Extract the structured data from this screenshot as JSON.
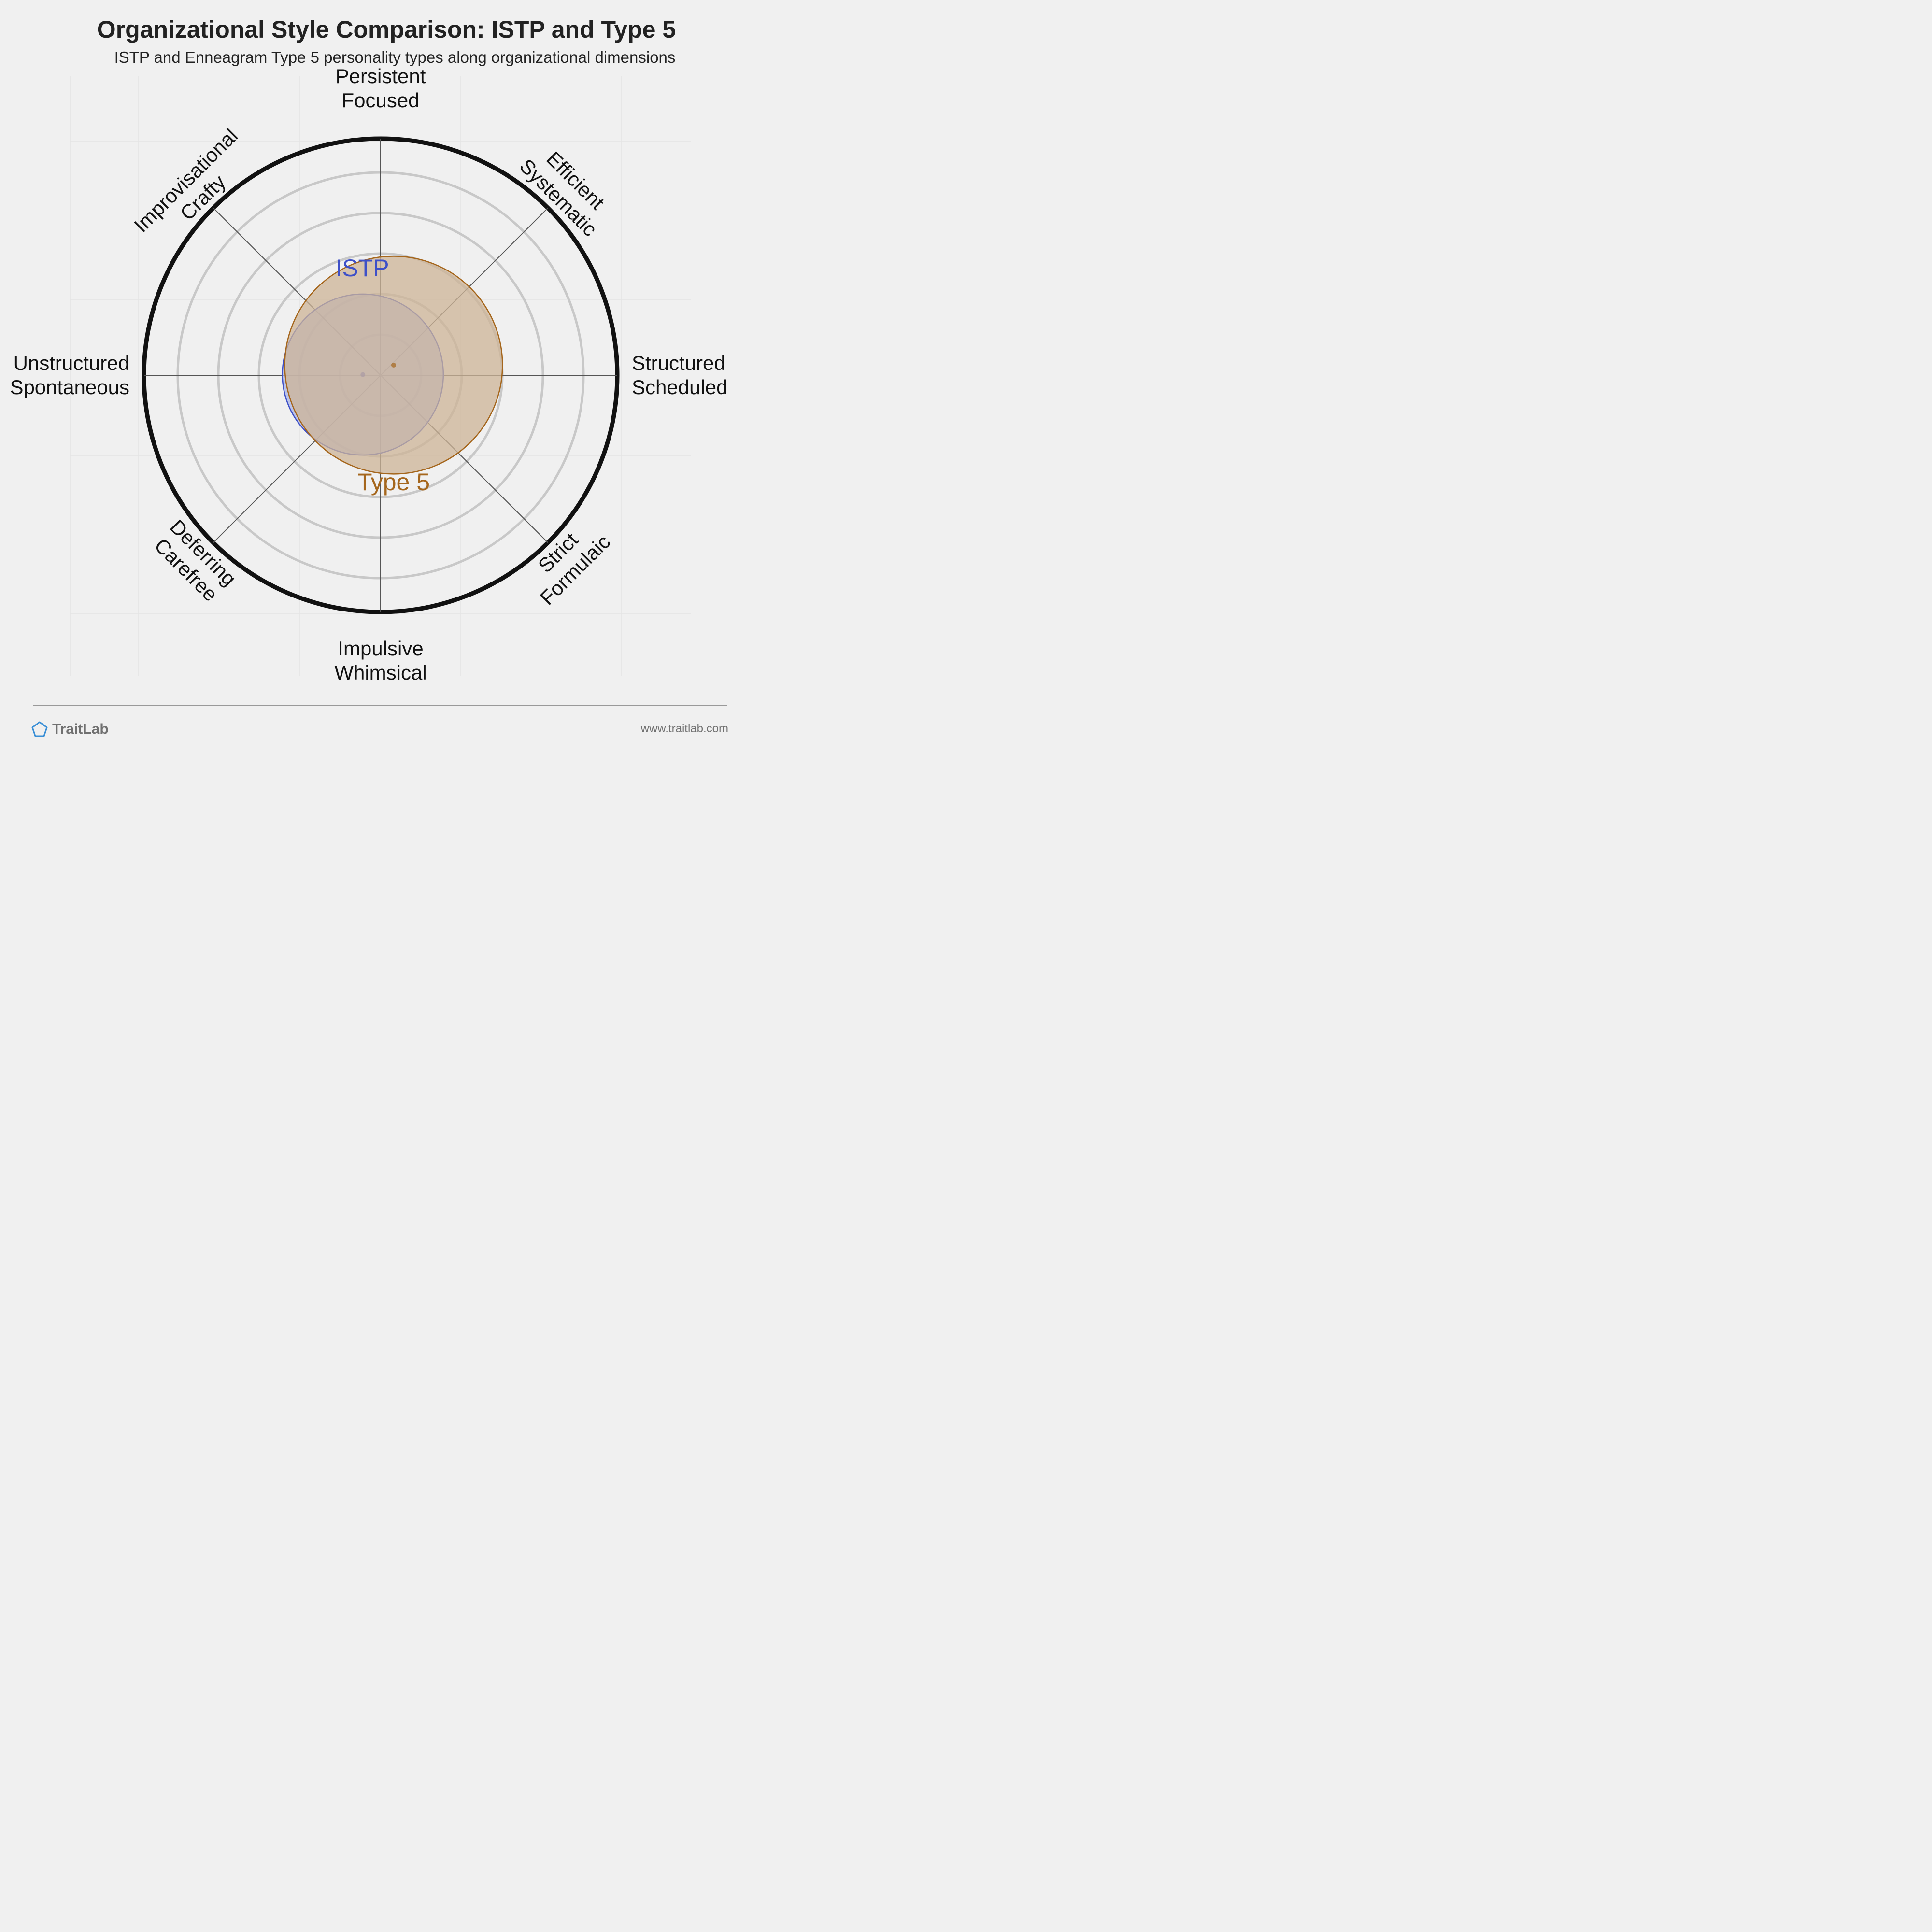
{
  "title": "Organizational Style Comparison: ISTP and Type 5",
  "subtitle": "ISTP and Enneagram Type 5 personality types along organizational dimensions",
  "footer": {
    "brand": "TraitLab",
    "url": "www.traitlab.com"
  },
  "chart_data": {
    "type": "radar-circle",
    "axes": [
      {
        "lines": [
          "Persistent",
          "Focused"
        ]
      },
      {
        "lines": [
          "Efficient",
          "Systematic"
        ]
      },
      {
        "lines": [
          "Structured",
          "Scheduled"
        ]
      },
      {
        "lines": [
          "Strict",
          "Formulaic"
        ]
      },
      {
        "lines": [
          "Impulsive",
          "Whimsical"
        ]
      },
      {
        "lines": [
          "Deferring",
          "Carefree"
        ]
      },
      {
        "lines": [
          "Unstructured",
          "Spontaneous"
        ]
      },
      {
        "lines": [
          "Improvisational",
          "Crafty"
        ]
      }
    ],
    "range": [
      0,
      100
    ],
    "rings": 6,
    "grid": true,
    "series": [
      {
        "name": "ISTP",
        "center": [
          -7.5,
          0.3
        ],
        "radius": 34,
        "color": "#3e50c8",
        "fill": "#aab4e6"
      },
      {
        "name": "Type 5",
        "center": [
          5.5,
          4.3
        ],
        "radius": 46,
        "color": "#a5661c",
        "fill": "#cdb497"
      }
    ]
  }
}
